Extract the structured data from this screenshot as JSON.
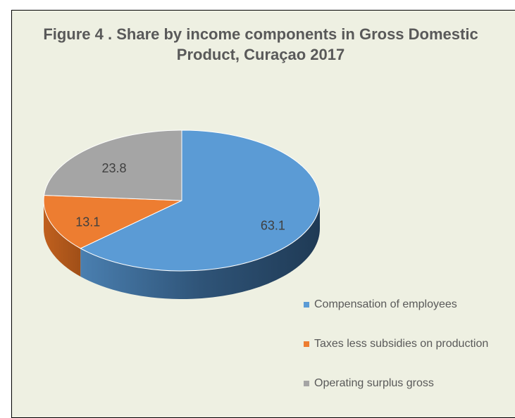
{
  "chart_data": {
    "type": "pie",
    "title": "Figure 4 . Share by income components in Gross Domestic Product, Curaçao 2017",
    "categories": [
      "Compensation of employees",
      "Taxes less subsidies on production",
      "Operating surplus gross"
    ],
    "values": [
      63.1,
      13.1,
      23.8
    ],
    "colors": [
      "#5b9bd5",
      "#ed7d31",
      "#a5a5a5"
    ],
    "legend": "right"
  }
}
